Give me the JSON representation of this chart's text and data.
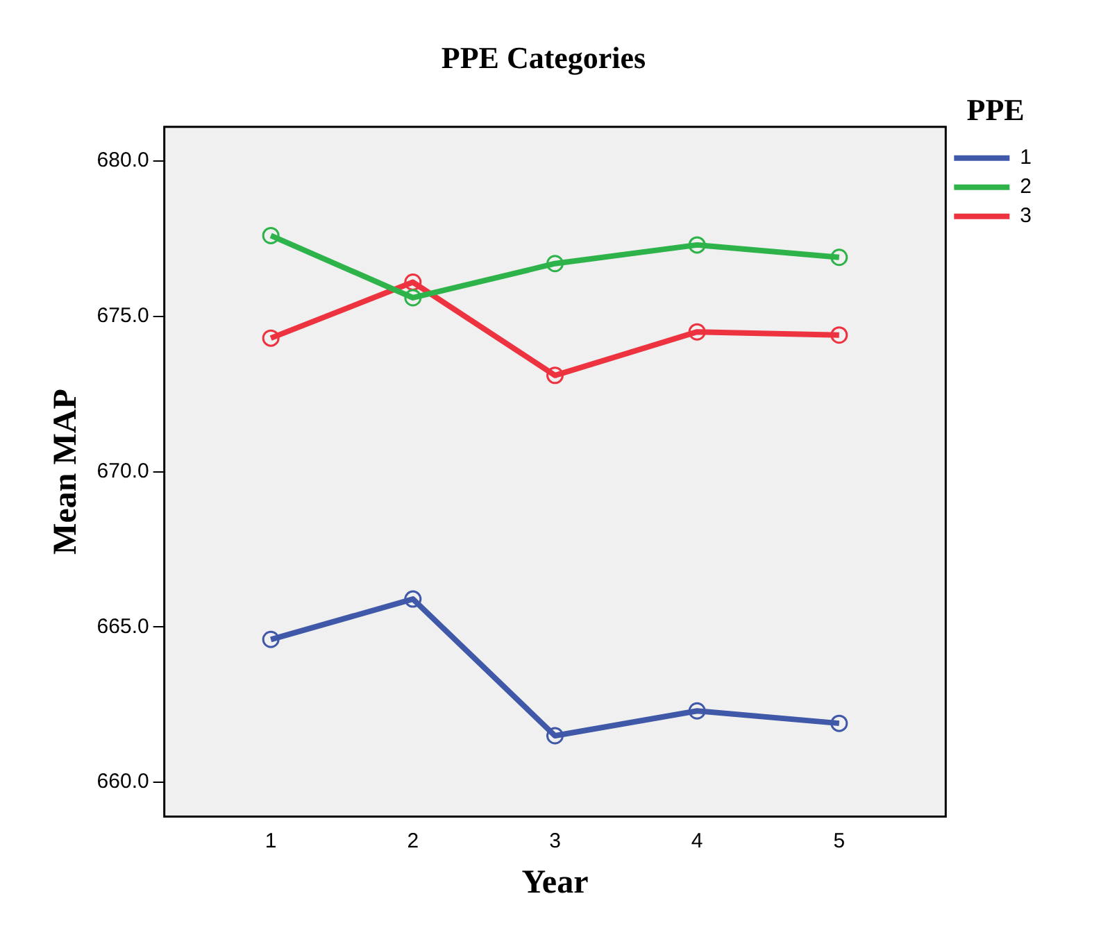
{
  "chart_data": {
    "type": "line",
    "title": "PPE Categories",
    "xlabel": "Year",
    "ylabel": "Mean MAP",
    "legend_title": "PPE",
    "x": [
      1,
      2,
      3,
      4,
      5
    ],
    "series": [
      {
        "name": "1",
        "color": "#3f58a8",
        "values": [
          664.6,
          665.9,
          661.5,
          662.3,
          661.9
        ]
      },
      {
        "name": "2",
        "color": "#2eb34a",
        "values": [
          677.6,
          675.6,
          676.7,
          677.3,
          676.9
        ]
      },
      {
        "name": "3",
        "color": "#ee3340",
        "values": [
          674.3,
          676.1,
          673.1,
          674.5,
          674.4
        ]
      }
    ],
    "xlim": [
      0.25,
      5.75
    ],
    "xticks": [
      1,
      2,
      3,
      4,
      5
    ],
    "ylim": [
      658.9,
      681.1
    ],
    "yticks": [
      {
        "value": 660,
        "label": "660.0"
      },
      {
        "value": 665,
        "label": "665.0"
      },
      {
        "value": 670,
        "label": "670.0"
      },
      {
        "value": 675,
        "label": "675.0"
      },
      {
        "value": 680,
        "label": "680.0"
      }
    ],
    "grid": false,
    "legend": "right",
    "marker": "circle",
    "line_style": "solid"
  }
}
